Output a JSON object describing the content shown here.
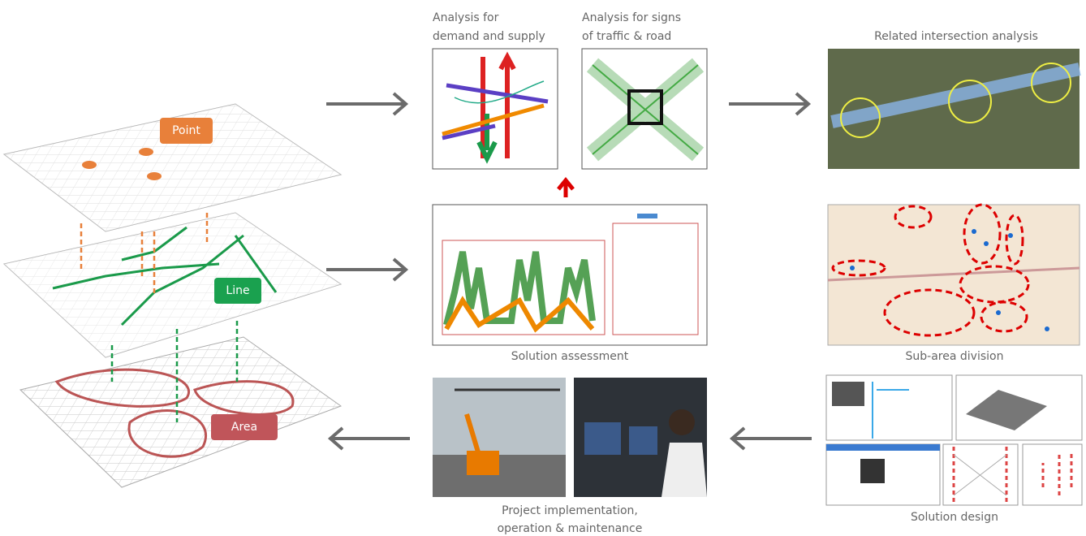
{
  "layers": [
    {
      "label": "Point"
    },
    {
      "label": "Line"
    },
    {
      "label": "Area"
    }
  ],
  "panels": {
    "demand_supply": {
      "caption": [
        "Analysis for",
        "demand and supply"
      ]
    },
    "traffic_signs": {
      "caption": [
        "Analysis for signs",
        "of traffic & road"
      ]
    },
    "intersection": {
      "caption": [
        "Related intersection analysis"
      ]
    },
    "assessment": {
      "caption": [
        "Solution assessment"
      ]
    },
    "subarea": {
      "caption": [
        "Sub-area division"
      ]
    },
    "implementation": {
      "caption": [
        "Project implementation,",
        "operation & maintenance"
      ]
    },
    "design": {
      "caption": [
        "Solution design"
      ]
    }
  }
}
